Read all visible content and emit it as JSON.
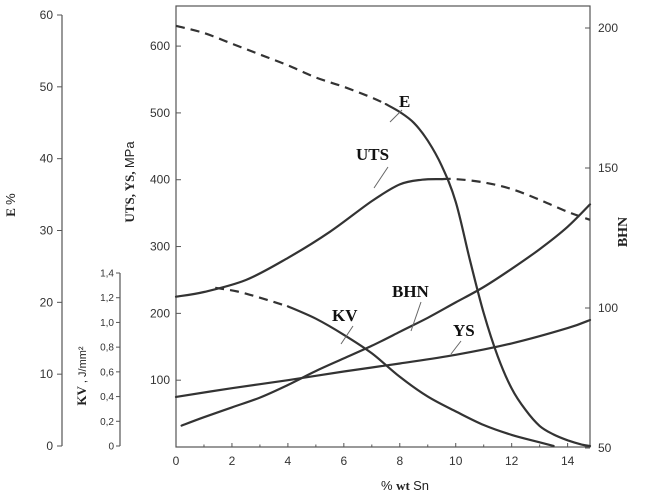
{
  "chart_data": {
    "type": "line",
    "xlabel": {
      "prefix": "% ",
      "main": "wt",
      "suffix": "Sn"
    },
    "x_ticks": [
      "0",
      "2",
      "4",
      "6",
      "8",
      "10",
      "12",
      "14"
    ],
    "xlim": [
      0,
      14.8
    ],
    "axes": {
      "E": {
        "label": "E",
        "unit": "%",
        "ticks": [
          "0",
          "10",
          "20",
          "30",
          "40",
          "50",
          "60"
        ],
        "lim": [
          0,
          60
        ]
      },
      "KV": {
        "label": "KV",
        "unit": "J/mm²",
        "ticks": [
          "0",
          "0,2",
          "0,4",
          "0,6",
          "0,8",
          "1,0",
          "1,2",
          "1,4"
        ],
        "lim": [
          0,
          1.4
        ]
      },
      "UTS_YS": {
        "label": "UTS, YS,",
        "unit": "MPa",
        "ticks": [
          "100",
          "200",
          "300",
          "400",
          "500",
          "600"
        ],
        "lim": [
          0,
          660
        ]
      },
      "BHN": {
        "label": "BHN",
        "ticks": [
          "50",
          "100",
          "150",
          "200"
        ],
        "lim": [
          50,
          210
        ]
      }
    },
    "series": [
      {
        "name": "E",
        "axis": "E",
        "segments": [
          {
            "style": "dashed",
            "x": [
              0,
              1,
              2,
              3,
              4,
              5,
              6,
              7,
              7.5
            ],
            "y": [
              58.5,
              57.5,
              56,
              54.5,
              53,
              51.3,
              50,
              48.5,
              47.6
            ]
          },
          {
            "style": "solid",
            "x": [
              7.5,
              8,
              8.5,
              9,
              9.5,
              10,
              10.5,
              11,
              11.5,
              12,
              12.5,
              13,
              13.5,
              14,
              14.5,
              14.8
            ],
            "y": [
              47.6,
              46.5,
              45,
              42.5,
              39,
              34,
              26,
              18.5,
              12.5,
              8,
              5,
              2.8,
              1.6,
              0.8,
              0.2,
              0
            ]
          }
        ]
      },
      {
        "name": "UTS",
        "axis": "UTS_YS",
        "segments": [
          {
            "style": "solid",
            "x": [
              0,
              1,
              2.5,
              4,
              5.5,
              7,
              8,
              8.8,
              9.5
            ],
            "y": [
              225,
              232,
              250,
              283,
              322,
              368,
              393,
              400,
              401
            ]
          },
          {
            "style": "dashed",
            "x": [
              9.5,
              10,
              11,
              12,
              13,
              14,
              14.8
            ],
            "y": [
              401,
              401,
              396,
              386,
              370,
              352,
              340
            ]
          }
        ]
      },
      {
        "name": "KV",
        "axis": "KV",
        "segments": [
          {
            "style": "dashed",
            "x": [
              1.4,
              2.2,
              3,
              4
            ],
            "y": [
              1.28,
              1.25,
              1.2,
              1.13
            ]
          },
          {
            "style": "solid",
            "x": [
              4,
              5,
              6,
              7,
              8,
              9,
              10,
              11,
              12,
              13,
              13.5
            ],
            "y": [
              1.13,
              1.03,
              0.9,
              0.75,
              0.56,
              0.4,
              0.28,
              0.17,
              0.09,
              0.03,
              0
            ]
          }
        ]
      },
      {
        "name": "BHN",
        "axis": "BHN",
        "segments": [
          {
            "style": "solid",
            "x": [
              0.2,
              1,
              2,
              3,
              4,
              5,
              6,
              7,
              8,
              9,
              10,
              11,
              12,
              13,
              14,
              14.8
            ],
            "y": [
              58,
              61,
              64.5,
              68,
              72.5,
              77.5,
              82,
              86.5,
              91.5,
              96.5,
              102,
              107.5,
              114,
              121,
              129,
              137
            ]
          }
        ]
      },
      {
        "name": "YS",
        "axis": "UTS_YS",
        "segments": [
          {
            "style": "solid",
            "x": [
              0,
              2,
              4,
              6,
              8,
              10,
              12,
              14,
              14.8
            ],
            "y": [
              75,
              88,
              100,
              113,
              125,
              138,
              155,
              178,
              190
            ]
          }
        ]
      }
    ]
  }
}
